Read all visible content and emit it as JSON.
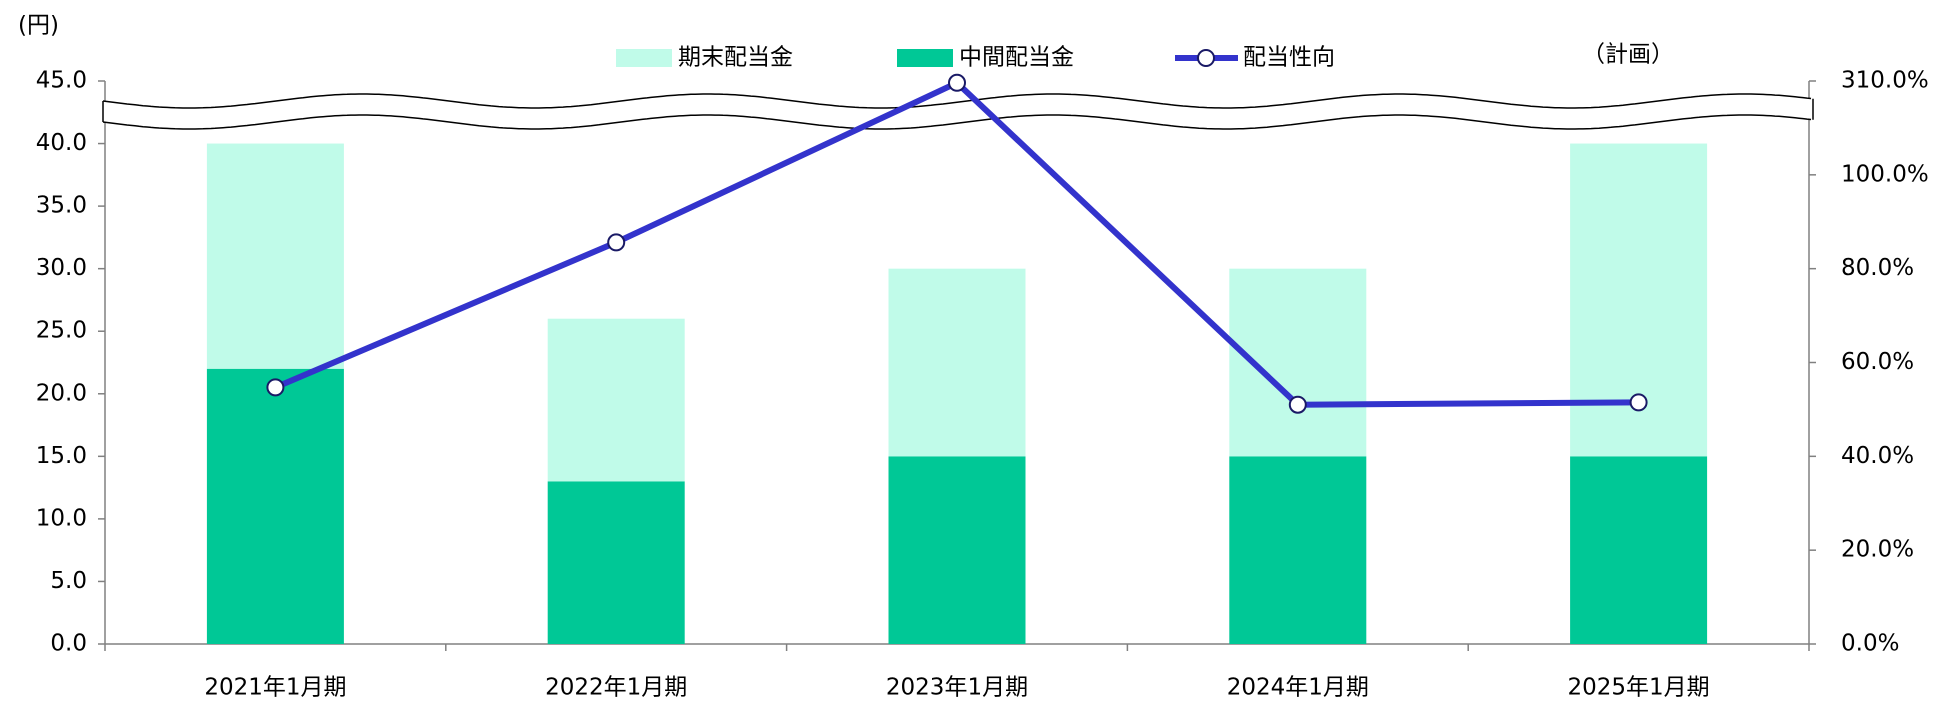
{
  "chart_data": {
    "type": "bar_line",
    "y_unit_label": "(円)",
    "note": "（計画）",
    "categories": [
      "2021年1月期",
      "2022年1月期",
      "2023年1月期",
      "2024年1月期",
      "2025年1月期"
    ],
    "series": [
      {
        "name": "期末配当金",
        "type": "bar",
        "color": "#c0fbe9",
        "values": [
          18,
          13,
          15,
          15,
          25
        ]
      },
      {
        "name": "中間配当金",
        "type": "bar",
        "color": "#00c896",
        "values": [
          22,
          13,
          15,
          15,
          15
        ]
      },
      {
        "name": "配当性向",
        "type": "line",
        "axis": "y2",
        "color": "#3333cc",
        "values": [
          54.7,
          85.6,
          306,
          51,
          51.5
        ]
      }
    ],
    "ylim": [
      0,
      45
    ],
    "yticks": [
      {
        "value": 0,
        "label": "0.0"
      },
      {
        "value": 5,
        "label": "5.0"
      },
      {
        "value": 10,
        "label": "10.0"
      },
      {
        "value": 15,
        "label": "15.0"
      },
      {
        "value": 20,
        "label": "20.0"
      },
      {
        "value": 25,
        "label": "25.0"
      },
      {
        "value": 30,
        "label": "30.0"
      },
      {
        "value": 35,
        "label": "35.0"
      },
      {
        "value": 40,
        "label": "40.0"
      },
      {
        "value": 45,
        "label": "45.0"
      }
    ],
    "y2lim": [
      0,
      310
    ],
    "y2ticks": [
      {
        "value": 0,
        "label": "0.0%"
      },
      {
        "value": 20,
        "label": "20.0%"
      },
      {
        "value": 40,
        "label": "40.0%"
      },
      {
        "value": 60,
        "label": "60.0%"
      },
      {
        "value": 80,
        "label": "80.0%"
      },
      {
        "value": 100,
        "label": "100.0%"
      },
      {
        "value": 310,
        "label": "310.0%"
      }
    ]
  }
}
